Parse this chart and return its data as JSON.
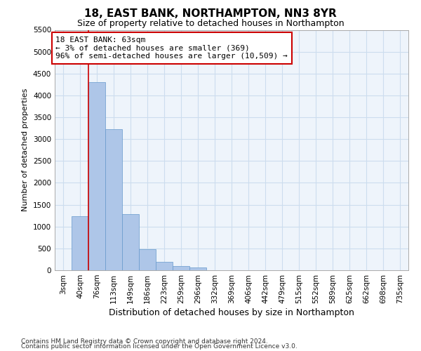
{
  "title": "18, EAST BANK, NORTHAMPTON, NN3 8YR",
  "subtitle": "Size of property relative to detached houses in Northampton",
  "xlabel": "Distribution of detached houses by size in Northampton",
  "ylabel": "Number of detached properties",
  "categories": [
    "3sqm",
    "40sqm",
    "76sqm",
    "113sqm",
    "149sqm",
    "186sqm",
    "223sqm",
    "259sqm",
    "296sqm",
    "332sqm",
    "369sqm",
    "406sqm",
    "442sqm",
    "479sqm",
    "515sqm",
    "552sqm",
    "589sqm",
    "625sqm",
    "662sqm",
    "698sqm",
    "735sqm"
  ],
  "values": [
    0,
    1230,
    4300,
    3220,
    1290,
    480,
    200,
    100,
    70,
    0,
    0,
    0,
    0,
    0,
    0,
    0,
    0,
    0,
    0,
    0,
    0
  ],
  "bar_color": "#aec6e8",
  "bar_edge_color": "#6699cc",
  "vline_color": "#cc0000",
  "vline_x_index": 1.5,
  "annotation_text": "18 EAST BANK: 63sqm\n← 3% of detached houses are smaller (369)\n96% of semi-detached houses are larger (10,509) →",
  "annotation_box_facecolor": "#ffffff",
  "annotation_box_edgecolor": "#cc0000",
  "ylim": [
    0,
    5500
  ],
  "yticks": [
    0,
    500,
    1000,
    1500,
    2000,
    2500,
    3000,
    3500,
    4000,
    4500,
    5000,
    5500
  ],
  "grid_color": "#ccddee",
  "bg_color": "#ffffff",
  "plot_bg_color": "#eef4fb",
  "footer1": "Contains HM Land Registry data © Crown copyright and database right 2024.",
  "footer2": "Contains public sector information licensed under the Open Government Licence v3.0.",
  "title_fontsize": 11,
  "subtitle_fontsize": 9,
  "xlabel_fontsize": 9,
  "ylabel_fontsize": 8,
  "tick_fontsize": 7.5,
  "annotation_fontsize": 8,
  "footer_fontsize": 6.5
}
